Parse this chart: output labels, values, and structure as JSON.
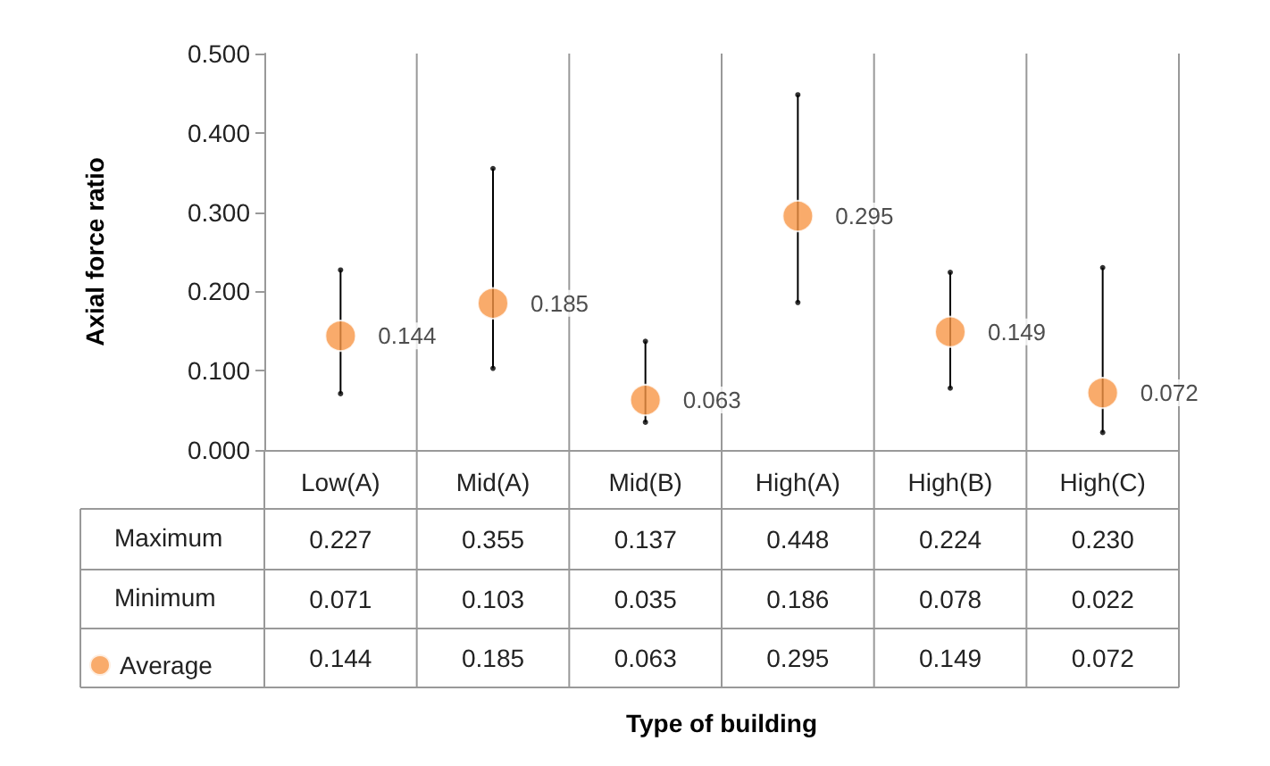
{
  "chart_data": {
    "type": "scatter",
    "ylabel": "Axial force ratio",
    "categories": [
      "Low(A)",
      "Mid(A)",
      "Mid(B)",
      "High(A)",
      "High(B)",
      "High(C)"
    ],
    "series": [
      {
        "marker": "circle",
        "color": "#000000",
        "values": [
          0.227,
          0.355,
          0.137,
          0.448,
          0.224,
          0.23
        ],
        "value_labels": [
          "0.227",
          "0.355",
          "0.137",
          "0.448",
          "0.224",
          "0.230"
        ]
      },
      {
        "marker": "circle",
        "color": "#000000",
        "values": [
          0.071,
          0.103,
          0.035,
          0.186,
          0.078,
          0.022
        ],
        "value_labels": [
          "0.071",
          "0.103",
          "0.035",
          "0.186",
          "0.078",
          "0.022"
        ]
      },
      {
        "name": "Average",
        "color": "#f79646",
        "marker": "circle",
        "values": [
          0.144,
          0.185,
          0.063,
          0.295,
          0.149,
          0.072
        ],
        "value_labels": [
          "0.144",
          "0.185",
          "0.063",
          "0.295",
          "0.149",
          "0.072"
        ]
      }
    ],
    "annotations": [
      "Maximum",
      "Minimum",
      "Type of building"
    ],
    "ylim": [
      0,
      0.5
    ],
    "yticks": [
      {
        "value": 0,
        "label": "0.000"
      },
      {
        "value": 0.1,
        "label": "0.100"
      },
      {
        "value": 0.2,
        "label": "0.200"
      },
      {
        "value": 0.3,
        "label": "0.300"
      },
      {
        "value": 0.4,
        "label": "0.400"
      },
      {
        "value": 0.5,
        "label": "0.500"
      }
    ],
    "data_labels": true,
    "legend": "bottom left"
  }
}
